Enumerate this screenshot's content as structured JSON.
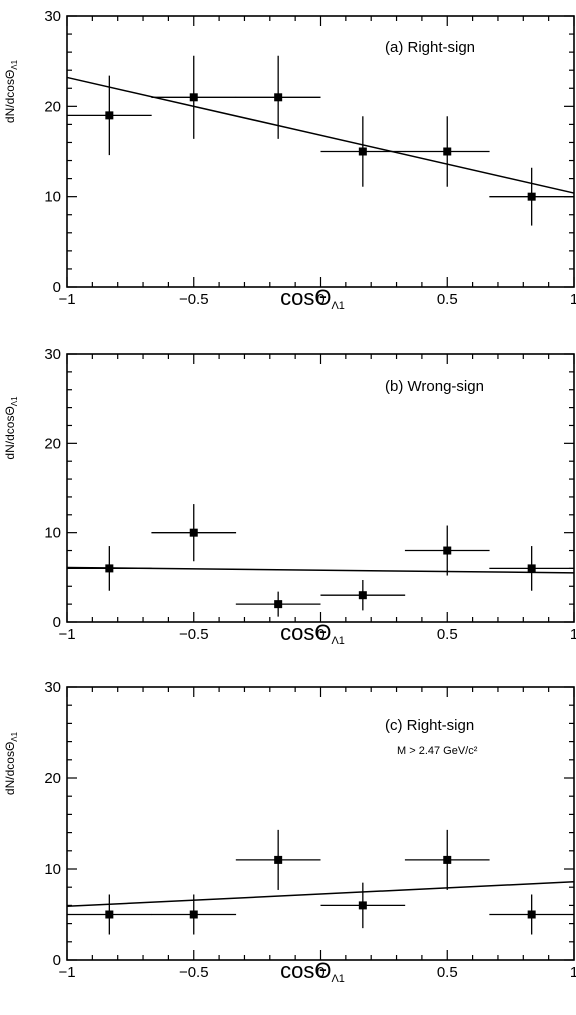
{
  "chart_data": [
    {
      "type": "scatter",
      "panel_label": "(a) Right-sign",
      "sub_label": "",
      "ylabel": "dN/dcosΘ",
      "ylabel_sub": "Λ1",
      "xlabel": "cosΘ",
      "xlabel_sub": "Λ1",
      "xlim": [
        -1,
        1
      ],
      "ylim": [
        0,
        30
      ],
      "xticks": [
        -1,
        -0.5,
        0,
        0.5,
        1
      ],
      "xtick_labels": [
        "−1",
        "−0.5",
        "0",
        "0.5",
        "1"
      ],
      "yticks": [
        0,
        10,
        20,
        30
      ],
      "ytick_labels": [
        "0",
        "10",
        "20",
        "30"
      ],
      "points": [
        {
          "x": -0.833,
          "y": 19,
          "xerr": 0.167,
          "yerr_low": 4.4,
          "yerr_high": 4.4
        },
        {
          "x": -0.5,
          "y": 21,
          "xerr": 0.167,
          "yerr_low": 4.6,
          "yerr_high": 4.6
        },
        {
          "x": -0.167,
          "y": 21,
          "xerr": 0.167,
          "yerr_low": 4.6,
          "yerr_high": 4.6
        },
        {
          "x": 0.167,
          "y": 15,
          "xerr": 0.167,
          "yerr_low": 3.9,
          "yerr_high": 3.9
        },
        {
          "x": 0.5,
          "y": 15,
          "xerr": 0.167,
          "yerr_low": 3.9,
          "yerr_high": 3.9
        },
        {
          "x": 0.833,
          "y": 10,
          "xerr": 0.167,
          "yerr_low": 3.2,
          "yerr_high": 3.2
        }
      ],
      "fit_line": {
        "x": [
          -1,
          1
        ],
        "y": [
          23.2,
          10.4
        ]
      }
    },
    {
      "type": "scatter",
      "panel_label": "(b) Wrong-sign",
      "sub_label": "",
      "ylabel": "dN/dcosΘ",
      "ylabel_sub": "Λ1",
      "xlabel": "cosΘ",
      "xlabel_sub": "Λ1",
      "xlim": [
        -1,
        1
      ],
      "ylim": [
        0,
        30
      ],
      "xticks": [
        -1,
        -0.5,
        0,
        0.5,
        1
      ],
      "xtick_labels": [
        "−1",
        "−0.5",
        "0",
        "0.5",
        "1"
      ],
      "yticks": [
        0,
        10,
        20,
        30
      ],
      "ytick_labels": [
        "0",
        "10",
        "20",
        "30"
      ],
      "points": [
        {
          "x": -0.833,
          "y": 6,
          "xerr": 0.167,
          "yerr_low": 2.5,
          "yerr_high": 2.5
        },
        {
          "x": -0.5,
          "y": 10,
          "xerr": 0.167,
          "yerr_low": 3.2,
          "yerr_high": 3.2
        },
        {
          "x": -0.167,
          "y": 2,
          "xerr": 0.167,
          "yerr_low": 1.4,
          "yerr_high": 1.4
        },
        {
          "x": 0.167,
          "y": 3,
          "xerr": 0.167,
          "yerr_low": 1.7,
          "yerr_high": 1.7
        },
        {
          "x": 0.5,
          "y": 8,
          "xerr": 0.167,
          "yerr_low": 2.8,
          "yerr_high": 2.8
        },
        {
          "x": 0.833,
          "y": 6,
          "xerr": 0.167,
          "yerr_low": 2.5,
          "yerr_high": 2.5
        }
      ],
      "fit_line": {
        "x": [
          -1,
          1
        ],
        "y": [
          6.1,
          5.5
        ]
      }
    },
    {
      "type": "scatter",
      "panel_label": "(c) Right-sign",
      "sub_label": "M > 2.47 GeV/c²",
      "ylabel": "dN/dcosΘ",
      "ylabel_sub": "Λ1",
      "xlabel": "cosΘ",
      "xlabel_sub": "Λ1",
      "xlim": [
        -1,
        1
      ],
      "ylim": [
        0,
        30
      ],
      "xticks": [
        -1,
        -0.5,
        0,
        0.5,
        1
      ],
      "xtick_labels": [
        "−1",
        "−0.5",
        "0",
        "0.5",
        "1"
      ],
      "yticks": [
        0,
        10,
        20,
        30
      ],
      "ytick_labels": [
        "0",
        "10",
        "20",
        "30"
      ],
      "points": [
        {
          "x": -0.833,
          "y": 5,
          "xerr": 0.167,
          "yerr_low": 2.2,
          "yerr_high": 2.2
        },
        {
          "x": -0.5,
          "y": 5,
          "xerr": 0.167,
          "yerr_low": 2.2,
          "yerr_high": 2.2
        },
        {
          "x": -0.167,
          "y": 11,
          "xerr": 0.167,
          "yerr_low": 3.3,
          "yerr_high": 3.3
        },
        {
          "x": 0.167,
          "y": 6,
          "xerr": 0.167,
          "yerr_low": 2.5,
          "yerr_high": 2.5
        },
        {
          "x": 0.5,
          "y": 11,
          "xerr": 0.167,
          "yerr_low": 3.3,
          "yerr_high": 3.3
        },
        {
          "x": 0.833,
          "y": 5,
          "xerr": 0.167,
          "yerr_low": 2.2,
          "yerr_high": 2.2
        }
      ],
      "fit_line": {
        "x": [
          -1,
          1
        ],
        "y": [
          5.9,
          8.6
        ]
      }
    }
  ]
}
